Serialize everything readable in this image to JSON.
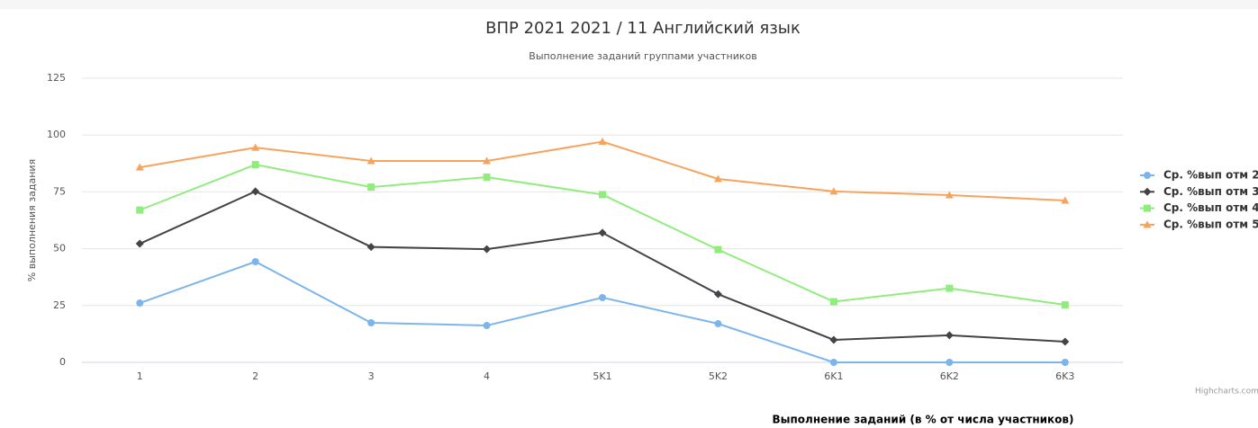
{
  "chart_data": {
    "type": "line",
    "title": "ВПР 2021 2021 / 11 Английский язык",
    "subtitle": "Выполнение заданий группами участников",
    "y_label": "% выполнения задания",
    "caption": "Выполнение заданий (в % от числа участников)",
    "credits": "Highcharts.com",
    "categories": [
      "1",
      "2",
      "3",
      "4",
      "5K1",
      "5K2",
      "6K1",
      "6K2",
      "6K3"
    ],
    "ylim": [
      0,
      125
    ],
    "yticks": [
      0,
      25,
      50,
      75,
      100,
      125
    ],
    "grid": true,
    "legend": "right",
    "series": [
      {
        "name": "Ср. %вып отм 2",
        "color": "#7cb5ec",
        "marker": "circle",
        "values": [
          26.1,
          44.3,
          17.4,
          16.2,
          28.5,
          17,
          0,
          0,
          0
        ]
      },
      {
        "name": "Ср. %вып отм 3",
        "color": "#434348",
        "marker": "diamond",
        "values": [
          52.2,
          75.2,
          50.8,
          49.8,
          57,
          30,
          9.9,
          11.9,
          9.1
        ]
      },
      {
        "name": "Ср. %вып отм 4",
        "color": "#90ed7d",
        "marker": "square",
        "values": [
          67,
          87,
          77.1,
          81.5,
          73.8,
          49.6,
          26.7,
          32.6,
          25.3
        ]
      },
      {
        "name": "Ср. %вып отм 5",
        "color": "#f7a35c",
        "marker": "triangle",
        "values": [
          85.8,
          94.5,
          88.6,
          88.6,
          97.1,
          80.7,
          75.2,
          73.6,
          71.2
        ]
      }
    ]
  }
}
